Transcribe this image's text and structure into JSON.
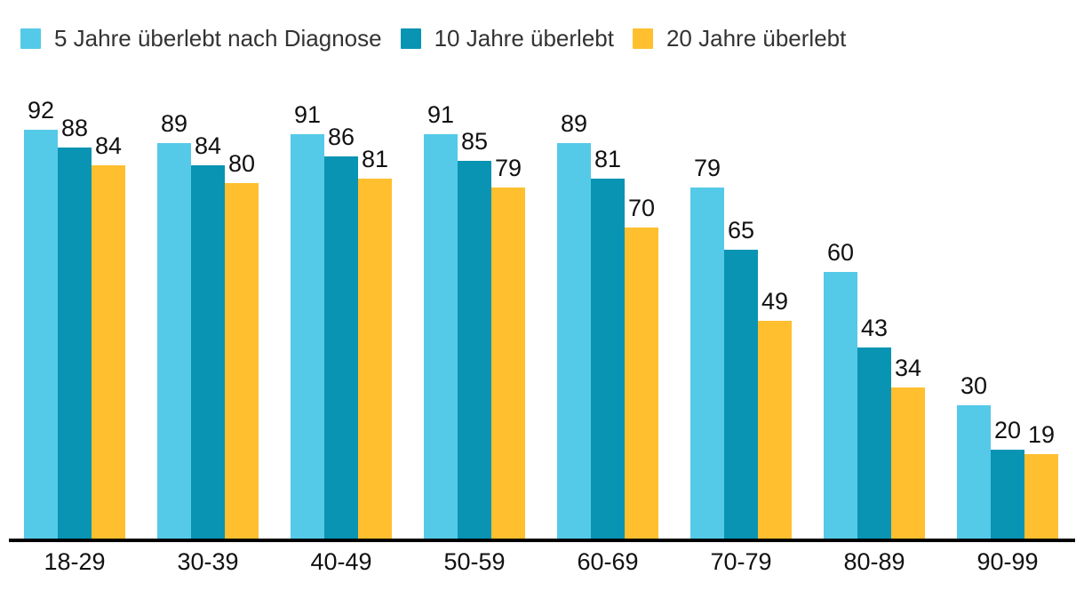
{
  "chart_data": {
    "type": "bar",
    "title": "",
    "xlabel": "",
    "ylabel": "",
    "categories": [
      "18-29",
      "30-39",
      "40-49",
      "50-59",
      "60-69",
      "70-79",
      "80-89",
      "90-99"
    ],
    "series": [
      {
        "name": "5 Jahre überlebt nach Diagnose",
        "color": "#55C9E8",
        "values": [
          92,
          89,
          91,
          91,
          89,
          79,
          60,
          30
        ]
      },
      {
        "name": "10 Jahre überlebt",
        "color": "#0894B2",
        "values": [
          88,
          84,
          86,
          85,
          81,
          65,
          43,
          20
        ]
      },
      {
        "name": "20 Jahre überlebt",
        "color": "#FFBF2F",
        "values": [
          84,
          80,
          81,
          79,
          70,
          49,
          34,
          19
        ]
      }
    ],
    "ylim": [
      0,
      100
    ],
    "grid": false,
    "y_axis_visible": false,
    "value_labels": true,
    "legend_position": "top-left",
    "axis_line_color": "#000000",
    "background_color": "#FFFFFF"
  }
}
